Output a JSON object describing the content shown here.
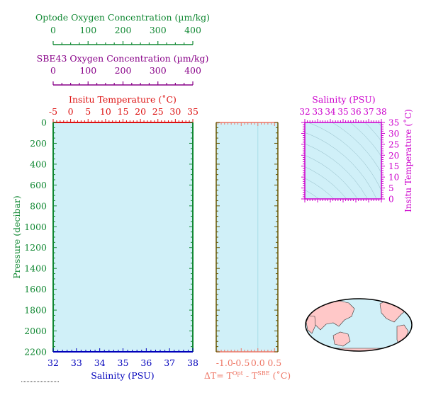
{
  "colors": {
    "green": "#118833",
    "purple": "#880088",
    "red": "#dd1111",
    "blue": "#0000bb",
    "olive": "#665500",
    "salmon": "#ee7766",
    "magenta": "#cc00cc",
    "panel_fill": "#d0f0f8",
    "land": "#ffc8c8"
  },
  "chart_data": [
    {
      "type": "line",
      "title": "Optode Oxygen Concentration (µm/kg)",
      "xlim": [
        0,
        400
      ],
      "xticks": [
        "0",
        "100",
        "200",
        "300",
        "400"
      ],
      "series": []
    },
    {
      "type": "line",
      "title": "SBE43 Oxygen Concentration (µm/kg)",
      "xlim": [
        0,
        400
      ],
      "xticks": [
        "0",
        "100",
        "200",
        "300",
        "400"
      ],
      "series": []
    },
    {
      "type": "line",
      "top_axis_label": "Insitu Temperature (˚C)",
      "top_xlim": [
        -5,
        35
      ],
      "top_xticks": [
        "-5",
        "0",
        "5",
        "10",
        "15",
        "20",
        "25",
        "30",
        "35"
      ],
      "xlabel": "Salinity (PSU)",
      "xlim": [
        32,
        38
      ],
      "xticks": [
        "32",
        "33",
        "34",
        "35",
        "36",
        "37",
        "38"
      ],
      "ylabel": "Pressure (decibar)",
      "ylim": [
        2200,
        0
      ],
      "yticks": [
        "0",
        "200",
        "400",
        "600",
        "800",
        "1000",
        "1200",
        "1400",
        "1600",
        "1800",
        "2000",
        "2200"
      ],
      "series": []
    },
    {
      "type": "line",
      "xlabel_main": "ΔT= T",
      "xlabel_sup1": "Opt",
      "xlabel_mid": " - T",
      "xlabel_sup2": "SBE",
      "xlabel_unit": " (˚C)",
      "xlim": [
        -1.25,
        0.6
      ],
      "xticks": [
        "-1.0",
        "-0.5",
        "0.0",
        "0.5"
      ],
      "series": []
    },
    {
      "type": "scatter",
      "xlabel": "Salinity (PSU)",
      "xlim": [
        32,
        38
      ],
      "xticks": [
        "32",
        "33",
        "34",
        "35",
        "36",
        "37",
        "38"
      ],
      "ylabel": "Insitu Temperature (˚C)",
      "ylim": [
        0,
        35
      ],
      "yticks": [
        "0",
        "5",
        "10",
        "15",
        "20",
        "25",
        "30",
        "35"
      ],
      "series": []
    }
  ]
}
